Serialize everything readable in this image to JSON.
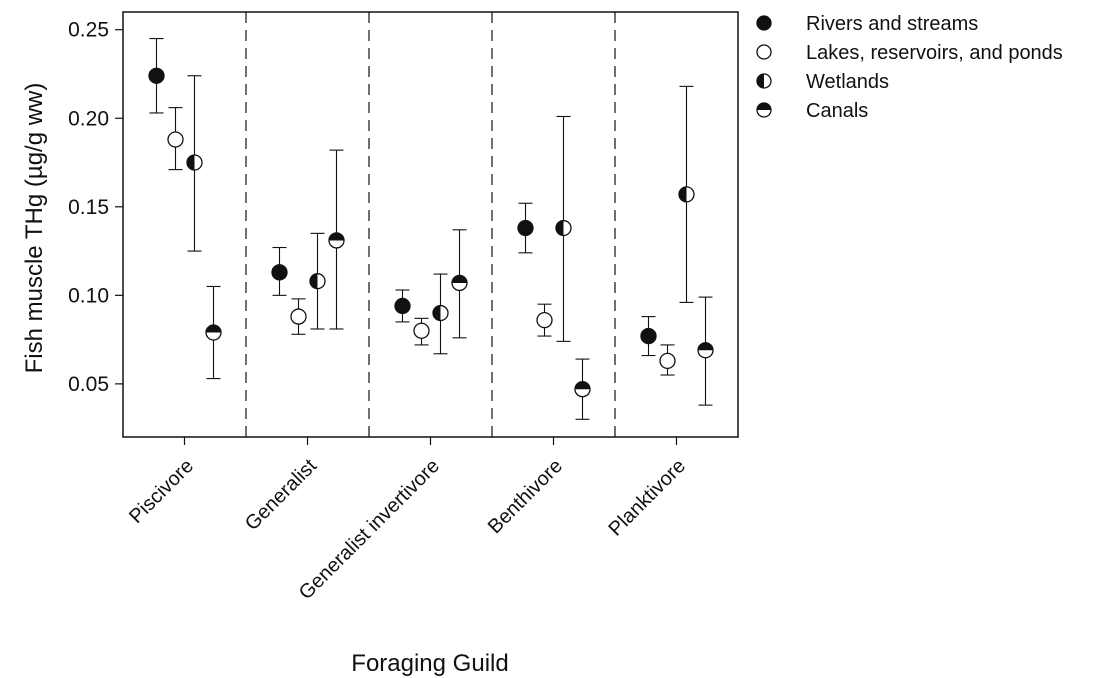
{
  "chart_data": {
    "type": "scatter",
    "title": "",
    "xlabel": "Foraging Guild",
    "ylabel": "Fish muscle THg (µg/g ww)",
    "ylim": [
      0.02,
      0.26
    ],
    "yticks": [
      "0.05",
      "0.10",
      "0.15",
      "0.20",
      "0.25"
    ],
    "categories": [
      "Piscivore",
      "Generalist",
      "Generalist invertivore",
      "Benthivore",
      "Planktivore"
    ],
    "legend_position": "top-right, outside plot",
    "grid": false,
    "series": [
      {
        "name": "Rivers and streams",
        "marker": "filled",
        "values": [
          0.224,
          0.113,
          0.094,
          0.138,
          0.077
        ],
        "lower": [
          0.203,
          0.1,
          0.085,
          0.124,
          0.066
        ],
        "upper": [
          0.245,
          0.127,
          0.103,
          0.152,
          0.088
        ]
      },
      {
        "name": "Lakes, reservoirs, and ponds",
        "marker": "open",
        "values": [
          0.188,
          0.088,
          0.08,
          0.086,
          0.063
        ],
        "lower": [
          0.171,
          0.078,
          0.072,
          0.077,
          0.055
        ],
        "upper": [
          0.206,
          0.098,
          0.087,
          0.095,
          0.072
        ]
      },
      {
        "name": "Wetlands",
        "marker": "half-left",
        "values": [
          0.175,
          0.108,
          0.09,
          0.138,
          0.157
        ],
        "lower": [
          0.125,
          0.081,
          0.067,
          0.074,
          0.096
        ],
        "upper": [
          0.224,
          0.135,
          0.112,
          0.201,
          0.218
        ]
      },
      {
        "name": "Canals",
        "marker": "half-top",
        "values": [
          0.079,
          0.131,
          0.107,
          0.047,
          0.069
        ],
        "lower": [
          0.053,
          0.081,
          0.076,
          0.03,
          0.038
        ],
        "upper": [
          0.105,
          0.182,
          0.137,
          0.064,
          0.099
        ]
      }
    ]
  }
}
